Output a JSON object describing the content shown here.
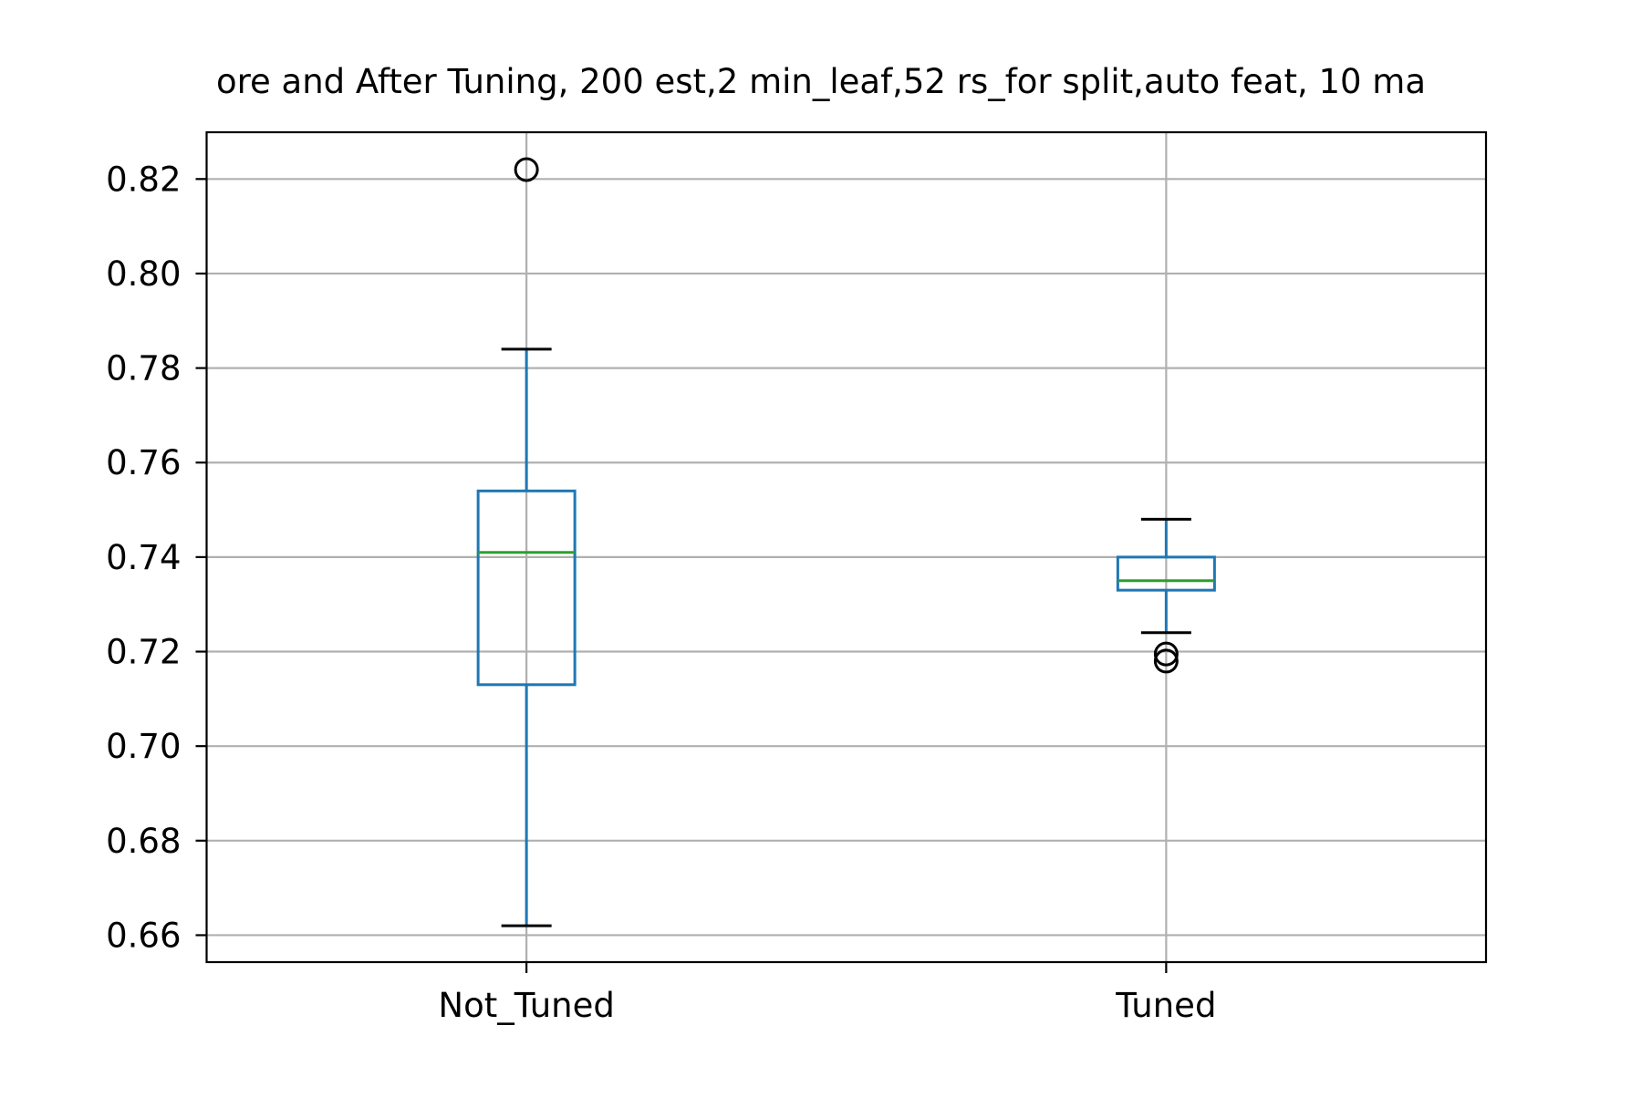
{
  "chart_data": {
    "type": "box",
    "title": "ore and After Tuning, 200 est,2 min_leaf,52 rs_for split,auto feat, 10 ma",
    "xlabel": "",
    "ylabel": "",
    "ylim": [
      0.6543,
      0.8299
    ],
    "yticks": [
      "0.66",
      "0.68",
      "0.70",
      "0.72",
      "0.74",
      "0.76",
      "0.78",
      "0.80",
      "0.82"
    ],
    "grid": true,
    "categories": [
      "Not_Tuned",
      "Tuned"
    ],
    "boxes": [
      {
        "name": "Not_Tuned",
        "whisker_low": 0.662,
        "q1": 0.713,
        "median": 0.741,
        "q3": 0.754,
        "whisker_high": 0.784,
        "outliers": [
          0.822
        ]
      },
      {
        "name": "Tuned",
        "whisker_low": 0.724,
        "q1": 0.733,
        "median": 0.735,
        "q3": 0.74,
        "whisker_high": 0.748,
        "outliers": [
          0.7195,
          0.718
        ]
      }
    ],
    "colors": {
      "box": "#1f77b4",
      "median": "#2ca02c",
      "whisker_cap": "#000000",
      "outlier": "#000000",
      "grid": "#b0b0b0"
    }
  }
}
